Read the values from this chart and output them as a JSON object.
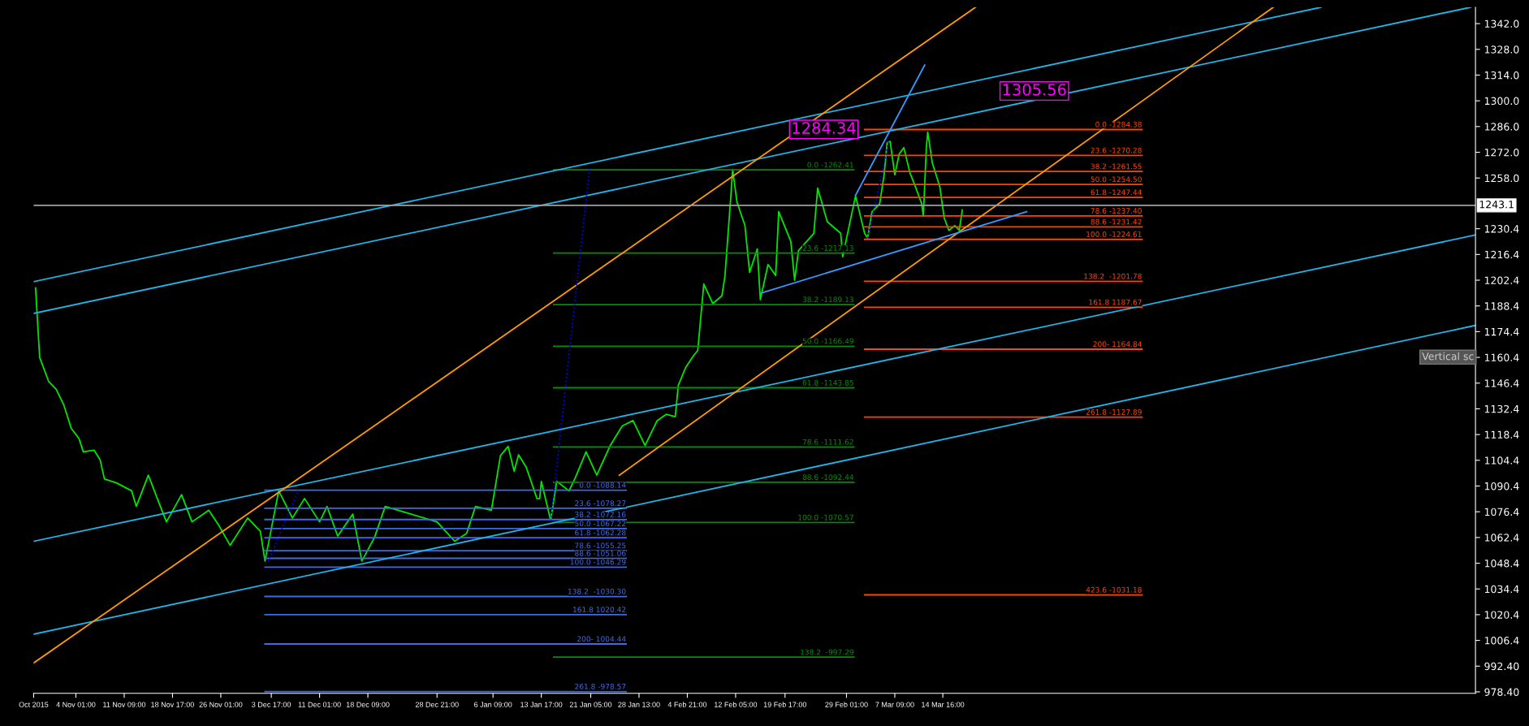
{
  "chart_data": {
    "type": "line",
    "xlim": [
      "2015-10-28T15:00",
      "2016-06-03T13:00"
    ],
    "ylim": [
      977.6,
      1350.9
    ],
    "xticks": [
      {
        "value": "2015-10-28T15:00",
        "label": "Oct 2015"
      },
      {
        "value": "2015-11-04T01:00",
        "label": "4 Nov 01:00"
      },
      {
        "value": "2015-11-11T09:00",
        "label": "11 Nov 09:00"
      },
      {
        "value": "2015-11-18T17:00",
        "label": "18 Nov 17:00"
      },
      {
        "value": "2015-11-26T01:00",
        "label": "26 Nov 01:00"
      },
      {
        "value": "2015-12-03T17:00",
        "label": "3 Dec 17:00"
      },
      {
        "value": "2015-12-11T01:00",
        "label": "11 Dec 01:00"
      },
      {
        "value": "2015-12-18T09:00",
        "label": "18 Dec 09:00"
      },
      {
        "value": "2015-12-28T21:00",
        "label": "28 Dec 21:00"
      },
      {
        "value": "2016-01-06T09:00",
        "label": "6 Jan 09:00"
      },
      {
        "value": "2016-01-13T17:00",
        "label": "13 Jan 17:00"
      },
      {
        "value": "2016-01-21T05:00",
        "label": "21 Jan 05:00"
      },
      {
        "value": "2016-01-28T13:00",
        "label": "28 Jan 13:00"
      },
      {
        "value": "2016-02-04T21:00",
        "label": "4 Feb 21:00"
      },
      {
        "value": "2016-02-12T05:00",
        "label": "12 Feb 05:00"
      },
      {
        "value": "2016-02-19T17:00",
        "label": "19 Feb 17:00"
      },
      {
        "value": "2016-02-29T01:00",
        "label": "29 Feb 01:00"
      },
      {
        "value": "2016-03-07T09:00",
        "label": "7 Mar 09:00"
      },
      {
        "value": "2016-03-14T16:00",
        "label": "14 Mar 16:00"
      }
    ],
    "yticks": [
      {
        "value": 978.4,
        "label": "978.40"
      },
      {
        "value": 992.4,
        "label": "992.40"
      },
      1006.4,
      1020.4,
      1034.4,
      1048.4,
      1062.4,
      1076.4,
      1090.4,
      1104.4,
      1118.4,
      1132.4,
      1146.4,
      1160.4,
      1174.4,
      1188.4,
      1202.4,
      1216.4,
      1230.4,
      {
        "value": 1258,
        "label": "1258.0"
      },
      {
        "value": 1272,
        "label": "1272.0"
      },
      {
        "value": 1286,
        "label": "1286.0"
      },
      {
        "value": 1300,
        "label": "1300.0"
      },
      {
        "value": 1314,
        "label": "1314.0"
      },
      {
        "value": 1328,
        "label": "1328.0"
      },
      {
        "value": 1342,
        "label": "1342.0"
      }
    ],
    "grid": false,
    "ref_lines": [
      {
        "axis": "y",
        "value": 1243.1,
        "label": "1243.1",
        "color": "#a0a0a0"
      }
    ],
    "series": [
      {
        "color": "#00e600",
        "x": [
          "2015-10-28T22:00",
          "2015-10-29T13:00",
          "2015-10-30T22:00",
          "2015-11-01T01:00",
          "2015-11-02T05:00",
          "2015-11-03T08:00",
          "2015-11-04T12:00",
          "2015-11-05T04:00",
          "2015-11-06T19:00",
          "2015-11-07T17:00",
          "2015-11-08T09:00",
          "2015-11-10T05:00",
          "2015-11-12T12:00",
          "2015-11-13T05:00",
          "2015-11-15T01:00",
          "2015-11-16T15:00",
          "2015-11-17T19:00",
          "2015-11-20T02:00",
          "2015-11-21T16:00",
          "2015-11-24T05:00",
          "2015-11-25T19:00",
          "2015-11-27T11:00",
          "2015-11-30T03:00",
          "2015-12-02T01:00",
          "2015-12-02T18:00",
          "2015-12-03T11:00",
          "2015-12-04T20:00",
          "2015-12-06T22:00",
          "2015-12-08T18:00",
          "2015-12-11T01:00",
          "2015-12-12T04:00",
          "2015-12-13T19:00",
          "2015-12-16T02:00",
          "2015-12-17T11:00",
          "2015-12-19T09:00",
          "2015-12-21T00:00",
          "2015-12-24T23:00",
          "2015-12-28T21:00",
          "2015-12-31T13:00",
          "2016-01-02T09:00",
          "2016-01-03T17:00",
          "2016-01-06T03:00",
          "2016-01-07T12:00",
          "2016-01-08T16:00",
          "2016-01-09T14:00",
          "2016-01-10T06:00",
          "2016-01-11T10:00",
          "2016-01-13T01:00",
          "2016-01-13T11:00",
          "2016-01-13T17:00",
          "2016-01-15T03:00",
          "2016-01-16T01:00",
          "2016-01-17T22:00",
          "2016-01-18T21:00",
          "2016-01-20T12:00",
          "2016-01-22T03:00",
          "2016-01-24T04:00",
          "2016-01-26T00:00",
          "2016-01-27T15:00",
          "2016-01-29T11:00",
          "2016-01-31T07:00",
          "2016-02-01T16:00",
          "2016-02-03T01:00",
          "2016-02-03T12:00",
          "2016-02-04T15:00",
          "2016-02-05T19:00",
          "2016-02-06T11:00",
          "2016-02-07T09:00",
          "2016-02-08T18:00",
          "2016-02-10T03:00",
          "2016-02-10T14:00",
          "2016-02-11T12:00",
          "2016-02-11T18:00",
          "2016-02-12T10:00",
          "2016-02-13T15:00",
          "2016-02-14T08:00",
          "2016-02-15T12:00",
          "2016-02-15T23:00",
          "2016-02-17T03:00",
          "2016-02-18T07:00",
          "2016-02-18T18:00",
          "2016-02-20T14:00",
          "2016-02-21T04:00",
          "2016-02-21T18:00",
          "2016-02-24T02:00",
          "2016-02-24T16:00",
          "2016-02-26T03:00",
          "2016-02-28T04:00",
          "2016-02-28T11:00",
          "2016-02-29T23:00",
          "2016-03-01T10:00",
          "2016-03-02T19:00",
          "2016-03-03T06:00",
          "2016-03-03T22:00",
          "2016-03-05T02:00",
          "2016-03-05T18:00",
          "2016-03-06T05:00",
          "2016-03-06T16:00",
          "2016-03-07T09:00",
          "2016-03-08T01:00",
          "2016-03-08T18:00",
          "2016-03-09T16:00",
          "2016-03-10T14:00",
          "2016-03-11T11:00",
          "2016-03-11T17:00",
          "2016-03-12T04:00",
          "2016-03-12T09:00",
          "2016-03-13T02:00",
          "2016-03-14T05:00",
          "2016-03-14T21:00",
          "2016-03-15T14:00",
          "2016-03-16T12:00",
          "2016-03-17T04:00",
          "2016-03-17T15:00"
        ],
        "values": [
          1198.2,
          1160.4,
          1147.2,
          1143.0,
          1134.5,
          1121.8,
          1116.3,
          1109.0,
          1109.9,
          1104.8,
          1094.2,
          1092.1,
          1087.8,
          1079.3,
          1096.3,
          1081.5,
          1070.9,
          1085.7,
          1070.9,
          1077.2,
          1068.7,
          1058.1,
          1073.0,
          1065.8,
          1049.6,
          1062.4,
          1087.8,
          1073.0,
          1083.6,
          1070.9,
          1079.3,
          1063.2,
          1075.1,
          1049.6,
          1062.4,
          1079.3,
          1075.1,
          1070.9,
          1060.4,
          1064.7,
          1079.3,
          1077.2,
          1106.9,
          1112.0,
          1098.4,
          1107.4,
          1100.6,
          1083.6,
          1083.6,
          1092.9,
          1071.7,
          1092.9,
          1087.8,
          1095.0,
          1109.0,
          1096.3,
          1112.4,
          1123.1,
          1126.0,
          1112.4,
          1126.0,
          1129.4,
          1128.1,
          1145.1,
          1154.9,
          1161.2,
          1164.2,
          1200.3,
          1189.7,
          1193.9,
          1204.5,
          1249.1,
          1262.6,
          1244.8,
          1232.1,
          1206.6,
          1219.4,
          1191.8,
          1210.9,
          1204.9,
          1239.7,
          1223.6,
          1202.4,
          1218.5,
          1227.9,
          1252.5,
          1234.2,
          1227.9,
          1215.1,
          1240.6,
          1248.2,
          1227.9,
          1225.3,
          1239.7,
          1244.0,
          1259.7,
          1277.1,
          1277.9,
          1259.7,
          1271.1,
          1274.5,
          1260.9,
          1252.5,
          1244.0,
          1237.2,
          1274.5,
          1283.0,
          1266.0,
          1253.3,
          1236.3,
          1229.5,
          1232.1,
          1229.5,
          1240.6
        ]
      },
      {
        "color": "#4169e1",
        "x": [
          "2015-12-02T18:00",
          "2016-01-26T14:00"
        ],
        "values": [
          1088.14,
          1088.14
        ]
      },
      {
        "color": "#4169e1",
        "x": [
          "2015-12-02T18:00",
          "2016-01-26T14:00"
        ],
        "values": [
          1078.27,
          1078.27
        ]
      },
      {
        "color": "#4169e1",
        "x": [
          "2015-12-02T18:00",
          "2016-01-26T14:00"
        ],
        "values": [
          1072.16,
          1072.16
        ]
      },
      {
        "color": "#4169e1",
        "x": [
          "2015-12-02T18:00",
          "2016-01-26T14:00"
        ],
        "values": [
          1067.22,
          1067.22
        ]
      },
      {
        "color": "#4169e1",
        "x": [
          "2015-12-02T18:00",
          "2016-01-26T14:00"
        ],
        "values": [
          1062.28,
          1062.28
        ]
      },
      {
        "color": "#4169e1",
        "x": [
          "2015-12-02T18:00",
          "2016-01-26T14:00"
        ],
        "values": [
          1055.25,
          1055.25
        ]
      },
      {
        "color": "#4169e1",
        "x": [
          "2015-12-02T18:00",
          "2016-01-26T14:00"
        ],
        "values": [
          1051.06,
          1051.06
        ]
      },
      {
        "color": "#4169e1",
        "x": [
          "2015-12-02T18:00",
          "2016-01-26T14:00"
        ],
        "values": [
          1046.29,
          1046.29
        ]
      },
      {
        "color": "#4169e1",
        "x": [
          "2015-12-02T18:00",
          "2016-01-26T14:00"
        ],
        "values": [
          1030.3,
          1030.3
        ]
      },
      {
        "color": "#4169e1",
        "x": [
          "2015-12-02T18:00",
          "2016-01-26T14:00"
        ],
        "values": [
          1020.42,
          1020.42
        ]
      },
      {
        "color": "#4169e1",
        "x": [
          "2015-12-02T18:00",
          "2016-01-26T14:00"
        ],
        "values": [
          1004.44,
          1004.44
        ]
      },
      {
        "color": "#4169e1",
        "x": [
          "2015-12-02T18:00",
          "2016-01-26T14:00"
        ],
        "values": [
          978.57,
          978.57
        ]
      },
      {
        "color": "#0a8a0a",
        "x": [
          "2016-01-15T14:00",
          "2016-03-01T04:00"
        ],
        "values": [
          1262.41,
          1262.41
        ]
      },
      {
        "color": "#0a8a0a",
        "x": [
          "2016-01-15T14:00",
          "2016-03-01T04:00"
        ],
        "values": [
          1217.13,
          1217.13
        ]
      },
      {
        "color": "#0a8a0a",
        "x": [
          "2016-01-15T14:00",
          "2016-03-01T04:00"
        ],
        "values": [
          1189.13,
          1189.13
        ]
      },
      {
        "color": "#0a8a0a",
        "x": [
          "2016-01-15T14:00",
          "2016-03-01T04:00"
        ],
        "values": [
          1166.49,
          1166.49
        ]
      },
      {
        "color": "#0a8a0a",
        "x": [
          "2016-01-15T14:00",
          "2016-03-01T04:00"
        ],
        "values": [
          1143.85,
          1143.85
        ]
      },
      {
        "color": "#0a8a0a",
        "x": [
          "2016-01-15T14:00",
          "2016-03-01T04:00"
        ],
        "values": [
          1111.62,
          1111.62
        ]
      },
      {
        "color": "#0a8a0a",
        "x": [
          "2016-01-15T14:00",
          "2016-03-01T04:00"
        ],
        "values": [
          1092.44,
          1092.44
        ]
      },
      {
        "color": "#0a8a0a",
        "x": [
          "2016-01-15T14:00",
          "2016-03-01T04:00"
        ],
        "values": [
          1070.57,
          1070.57
        ]
      },
      {
        "color": "#0a8a0a",
        "x": [
          "2016-01-15T14:00",
          "2016-03-01T04:00"
        ],
        "values": [
          997.29,
          997.29
        ]
      },
      {
        "color": "#ff4500",
        "x": [
          "2016-03-02T19:00",
          "2016-04-13T22:00"
        ],
        "values": [
          1284.38,
          1284.38
        ]
      },
      {
        "color": "#ff4500",
        "x": [
          "2016-03-02T19:00",
          "2016-04-13T22:00"
        ],
        "values": [
          1270.28,
          1270.28
        ]
      },
      {
        "color": "#ff4500",
        "x": [
          "2016-03-02T19:00",
          "2016-04-13T22:00"
        ],
        "values": [
          1261.55,
          1261.55
        ]
      },
      {
        "color": "#ff4500",
        "x": [
          "2016-03-02T19:00",
          "2016-04-13T22:00"
        ],
        "values": [
          1254.5,
          1254.5
        ]
      },
      {
        "color": "#ff4500",
        "x": [
          "2016-03-02T19:00",
          "2016-04-13T22:00"
        ],
        "values": [
          1247.44,
          1247.44
        ]
      },
      {
        "color": "#ff4500",
        "x": [
          "2016-03-02T19:00",
          "2016-04-13T22:00"
        ],
        "values": [
          1237.4,
          1237.4
        ]
      },
      {
        "color": "#ff4500",
        "x": [
          "2016-03-02T19:00",
          "2016-04-13T22:00"
        ],
        "values": [
          1231.42,
          1231.42
        ]
      },
      {
        "color": "#ff4500",
        "x": [
          "2016-03-02T19:00",
          "2016-04-13T22:00"
        ],
        "values": [
          1224.61,
          1224.61
        ]
      },
      {
        "color": "#ff4500",
        "x": [
          "2016-03-02T19:00",
          "2016-04-13T22:00"
        ],
        "values": [
          1201.78,
          1201.78
        ]
      },
      {
        "color": "#ff4500",
        "x": [
          "2016-03-02T19:00",
          "2016-04-13T22:00"
        ],
        "values": [
          1187.67,
          1187.67
        ]
      },
      {
        "color": "#ff4500",
        "x": [
          "2016-03-02T19:00",
          "2016-04-13T22:00"
        ],
        "values": [
          1164.84,
          1164.84
        ]
      },
      {
        "color": "#ff4500",
        "x": [
          "2016-03-02T19:00",
          "2016-04-13T22:00"
        ],
        "values": [
          1127.89,
          1127.89
        ]
      },
      {
        "color": "#ff4500",
        "x": [
          "2016-03-02T19:00",
          "2016-04-13T22:00"
        ],
        "values": [
          1031.18,
          1031.18
        ]
      },
      {
        "color": "#1fb5e8",
        "x": [
          "2015-10-28T15:00",
          "2016-05-11T02:00"
        ],
        "values": [
          1201.6,
          1350.9
        ]
      },
      {
        "color": "#1fb5e8",
        "x": [
          "2015-10-28T15:00",
          "2016-06-02T19:00"
        ],
        "values": [
          1184.3,
          1350.9
        ]
      },
      {
        "color": "#1fb5e8",
        "x": [
          "2015-10-28T15:00",
          "2016-06-03T13:00"
        ],
        "values": [
          1060.3,
          1227.0
        ]
      },
      {
        "color": "#1fb5e8",
        "x": [
          "2015-10-28T15:00",
          "2016-06-03T13:00"
        ],
        "values": [
          1009.8,
          1177.8
        ]
      },
      {
        "color": "#ff9900",
        "x": [
          "2015-10-28T15:00",
          "2016-03-19T15:00"
        ],
        "values": [
          994.1,
          1350.9
        ]
      },
      {
        "color": "#ff9900",
        "x": [
          "2016-01-25T13:00",
          "2016-05-03T20:00"
        ],
        "values": [
          1096.3,
          1350.9
        ]
      },
      {
        "color": "#3399ff",
        "x": [
          "2016-03-01T10:00",
          "2016-03-11T22:00"
        ],
        "values": [
          1248.6,
          1319.5
        ]
      },
      {
        "color": "#3399ff",
        "x": [
          "2016-02-16T02:00",
          "2016-03-27T10:00"
        ],
        "values": [
          1195.4,
          1239.7
        ]
      },
      {
        "color": "#0000ff",
        "line_style": "dotted",
        "x": [
          "2016-01-15T03:00",
          "2016-01-21T01:00"
        ],
        "values": [
          1071.3,
          1263.3
        ]
      },
      {
        "color": "#0000ff",
        "line_style": "dotted",
        "x": [
          "2015-12-03T05:00",
          "2015-12-07T20:00"
        ],
        "values": [
          1049.2,
          1088.2
        ]
      },
      {
        "color": "#0000ff",
        "line_style": "dotted",
        "x": [
          "2016-03-03T06:00",
          "2016-03-06T11:00"
        ],
        "values": [
          1225.3,
          1277.9
        ]
      }
    ],
    "annotations": [
      {
        "text": "0.0 -1088.14",
        "x": "2016-01-26T14:00",
        "y": 1088.14
      },
      {
        "text": "23.6 -1078.27",
        "x": "2016-01-26T14:00",
        "y": 1078.27
      },
      {
        "text": "38.2 -1072.16",
        "x": "2016-01-26T14:00",
        "y": 1072.16
      },
      {
        "text": "50.0 -1067.22",
        "x": "2016-01-26T14:00",
        "y": 1067.22
      },
      {
        "text": "61.8 -1062.28",
        "x": "2016-01-26T14:00",
        "y": 1062.28
      },
      {
        "text": "78.6 -1055.25",
        "x": "2016-01-26T14:00",
        "y": 1055.25
      },
      {
        "text": "88.6 -1051.06",
        "x": "2016-01-26T14:00",
        "y": 1051.06
      },
      {
        "text": "100.0 -1046.29",
        "x": "2016-01-26T14:00",
        "y": 1046.29
      },
      {
        "text": "138.2  -1030.30",
        "x": "2016-01-26T14:00",
        "y": 1030.3
      },
      {
        "text": "161.8 1020.42",
        "x": "2016-01-26T14:00",
        "y": 1020.42
      },
      {
        "text": "200- 1004.44",
        "x": "2016-01-26T14:00",
        "y": 1004.44
      },
      {
        "text": "261.8 -978.57",
        "x": "2016-01-26T14:00",
        "y": 978.57
      },
      {
        "text": "0.0 -1262.41",
        "x": "2016-03-01T04:00",
        "y": 1262.41
      },
      {
        "text": "23.6 -1217.13",
        "x": "2016-03-01T04:00",
        "y": 1217.13
      },
      {
        "text": "38.2 -1189.13",
        "x": "2016-03-01T04:00",
        "y": 1189.13
      },
      {
        "text": "50.0 -1166.49",
        "x": "2016-03-01T04:00",
        "y": 1166.49
      },
      {
        "text": "61.8 -1143.85",
        "x": "2016-03-01T04:00",
        "y": 1143.85
      },
      {
        "text": "78.6 -1111.62",
        "x": "2016-03-01T04:00",
        "y": 1111.62
      },
      {
        "text": "88.6 -1092.44",
        "x": "2016-03-01T04:00",
        "y": 1092.44
      },
      {
        "text": "100.0 -1070.57",
        "x": "2016-03-01T04:00",
        "y": 1070.57
      },
      {
        "text": "138.2  -997.29",
        "x": "2016-03-01T04:00",
        "y": 997.29
      },
      {
        "text": "0.0 -1284.38",
        "x": "2016-04-13T22:00",
        "y": 1284.38
      },
      {
        "text": "23.6 -1270.28",
        "x": "2016-04-13T22:00",
        "y": 1270.28
      },
      {
        "text": "38.2 -1261.55",
        "x": "2016-04-13T22:00",
        "y": 1261.55
      },
      {
        "text": "50.0 -1254.50",
        "x": "2016-04-13T22:00",
        "y": 1254.5
      },
      {
        "text": "61.8 -1247.44",
        "x": "2016-04-13T22:00",
        "y": 1247.44
      },
      {
        "text": "78.6 -1237.40",
        "x": "2016-04-13T22:00",
        "y": 1237.4
      },
      {
        "text": "88.6 -1231.42",
        "x": "2016-04-13T22:00",
        "y": 1231.42
      },
      {
        "text": "100.0 -1224.61",
        "x": "2016-04-13T22:00",
        "y": 1224.61
      },
      {
        "text": "138.2  -1201.78",
        "x": "2016-04-13T22:00",
        "y": 1201.78
      },
      {
        "text": "161.8 1187.67",
        "x": "2016-04-13T22:00",
        "y": 1187.67
      },
      {
        "text": "200- 1164.84",
        "x": "2016-04-13T22:00",
        "y": 1164.84
      },
      {
        "text": "261.8 -1127.89",
        "x": "2016-04-13T22:00",
        "y": 1127.89
      },
      {
        "text": "423.6 -1031.18",
        "x": "2016-04-13T22:00",
        "y": 1031.18
      },
      "1284.34",
      "1305.56",
      "Vertical sc"
    ]
  }
}
